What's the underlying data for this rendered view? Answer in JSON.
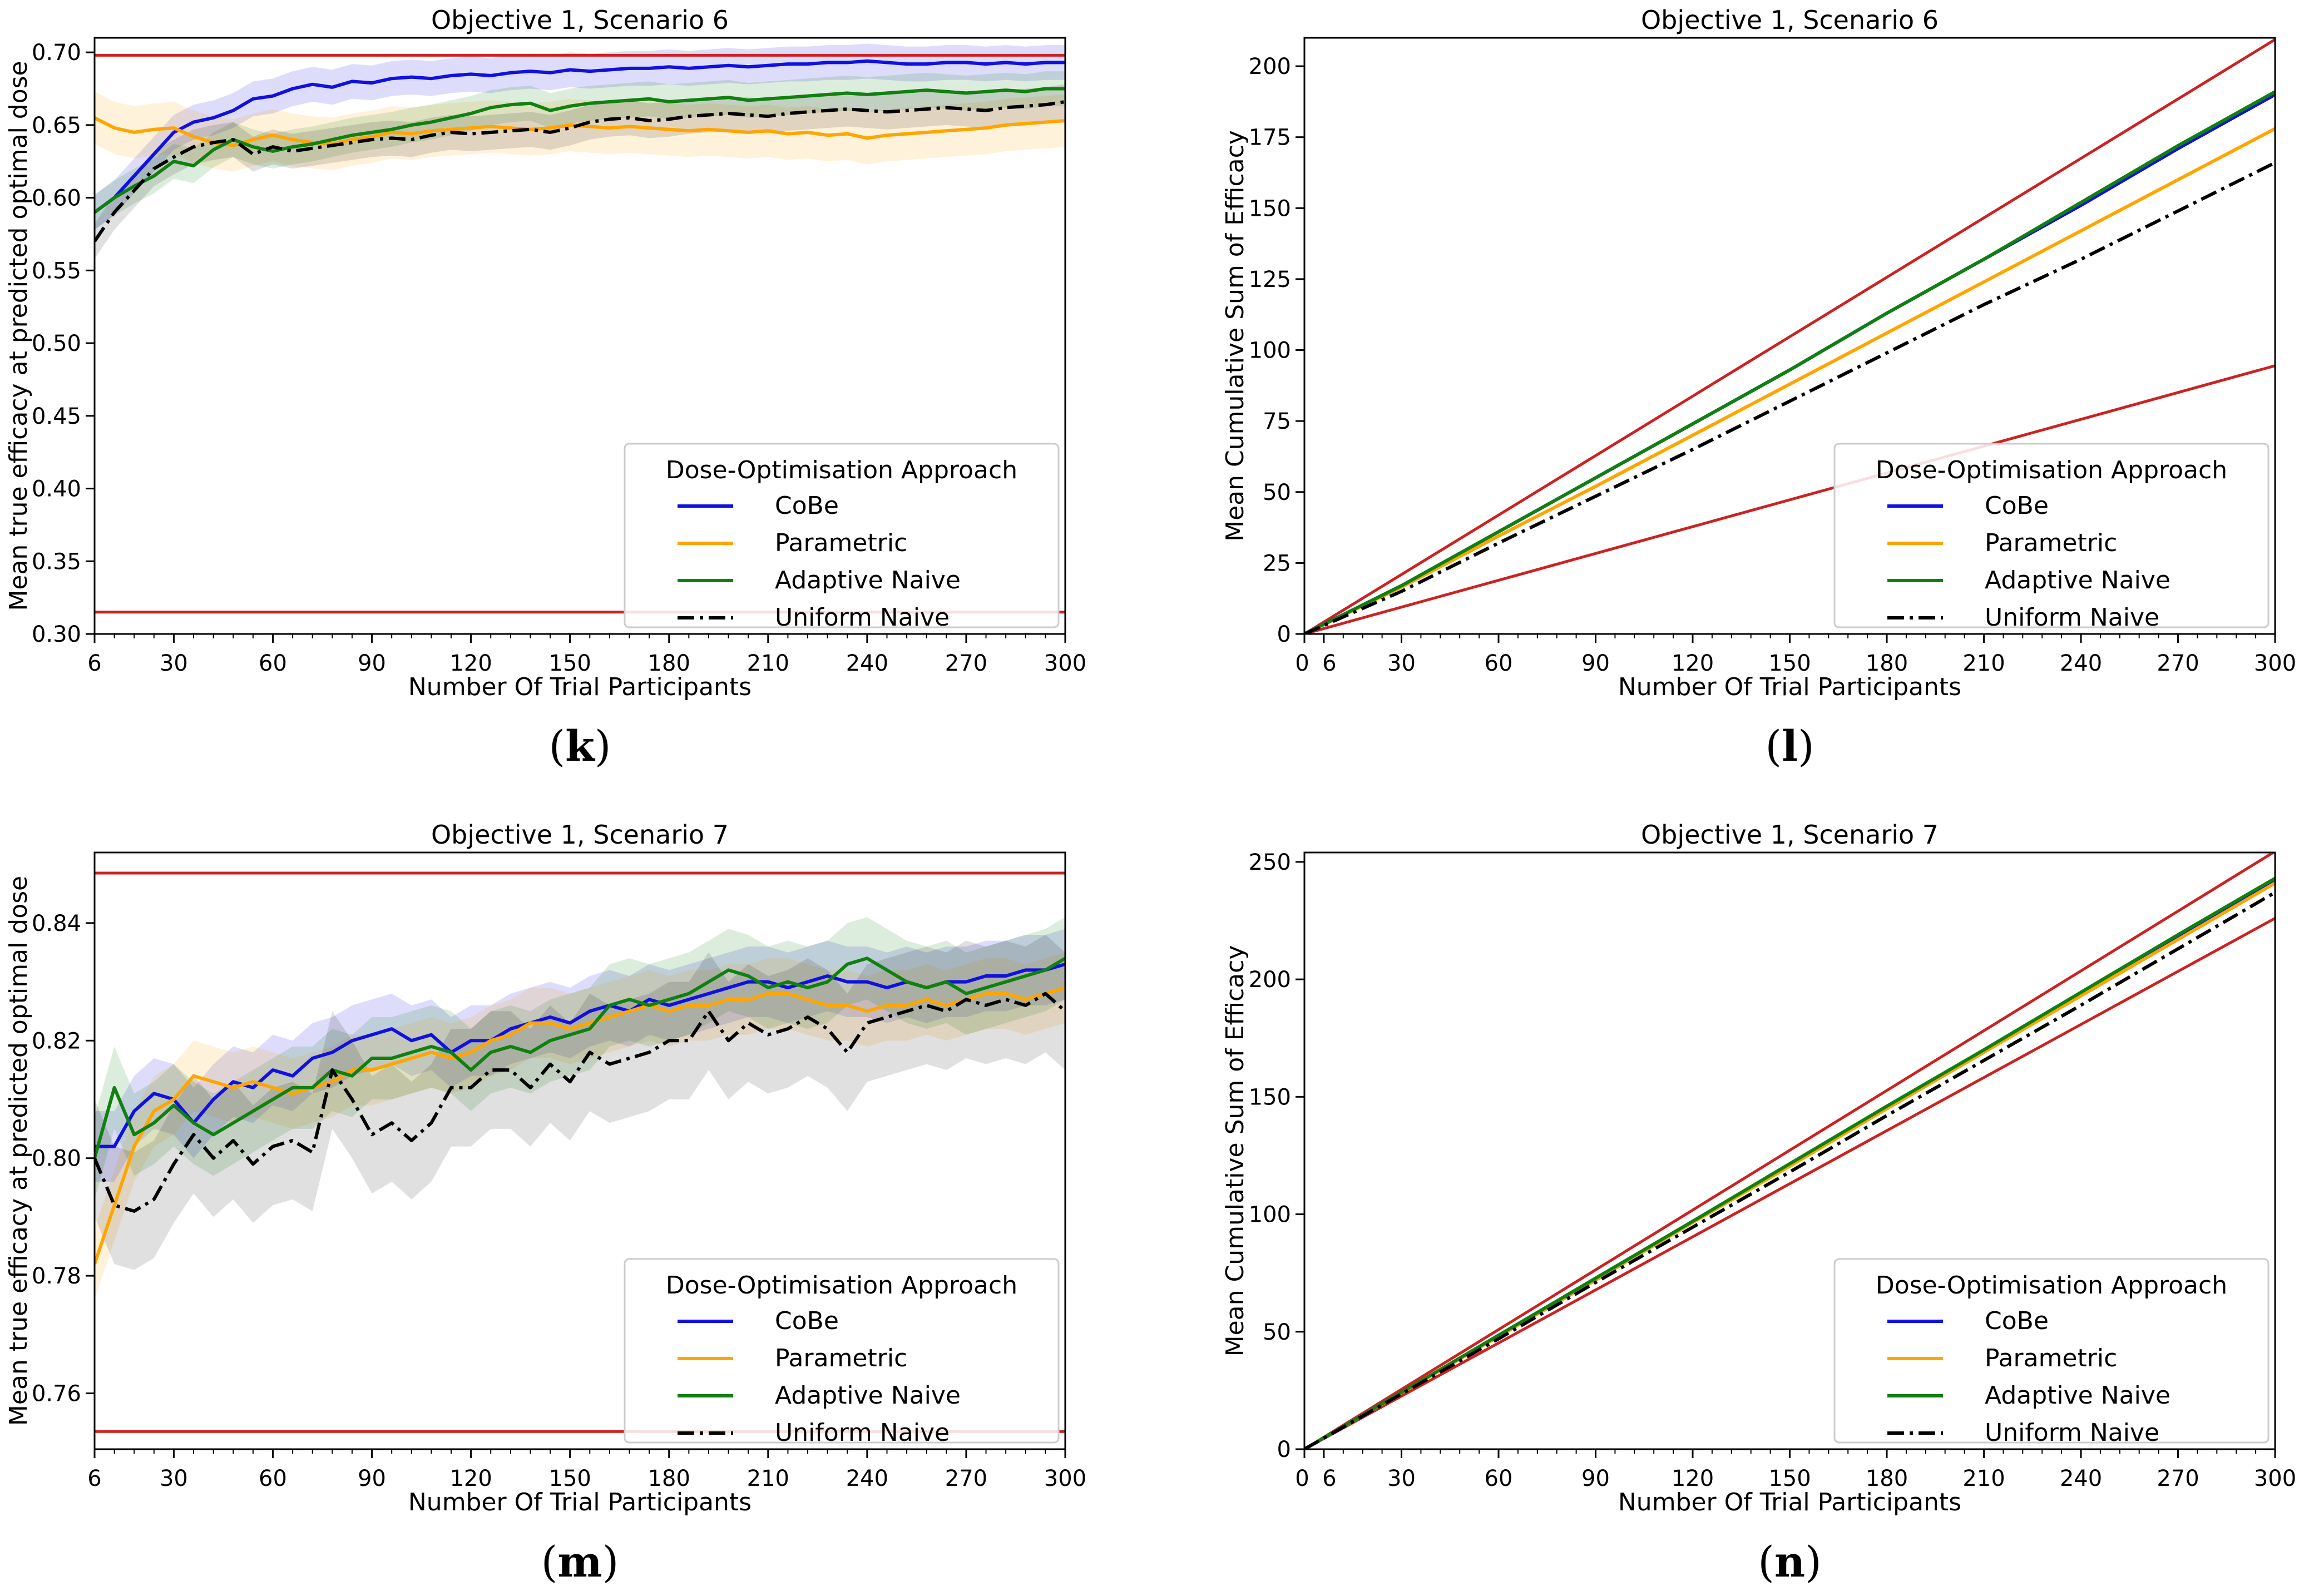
{
  "chart_data": [
    {
      "id": "k",
      "type": "line",
      "panel_label": {
        "open": "(",
        "letter": "k",
        "close": ")"
      },
      "title": "Objective 1, Scenario 6",
      "xlabel": "Number Of Trial Participants",
      "ylabel": "Mean true efficacy at predicted optimal dose",
      "xlim": [
        6,
        300
      ],
      "ylim": [
        0.3,
        0.71
      ],
      "xticks": [
        6,
        30,
        60,
        90,
        120,
        150,
        180,
        210,
        240,
        270,
        300
      ],
      "yticks": [
        0.3,
        0.35,
        0.4,
        0.45,
        0.5,
        0.55,
        0.6,
        0.65,
        0.7
      ],
      "ytick_labels": [
        "0.30",
        "0.35",
        "0.40",
        "0.45",
        "0.50",
        "0.55",
        "0.60",
        "0.65",
        "0.70"
      ],
      "hlines": [
        0.698,
        0.315
      ],
      "legend": {
        "title": "Dose-Optimisation Approach",
        "location": "lower-right"
      },
      "x": [
        6,
        12,
        18,
        24,
        30,
        36,
        42,
        48,
        54,
        60,
        66,
        72,
        78,
        84,
        90,
        96,
        102,
        108,
        114,
        120,
        126,
        132,
        138,
        144,
        150,
        156,
        162,
        168,
        174,
        180,
        186,
        192,
        198,
        204,
        210,
        216,
        222,
        228,
        234,
        240,
        246,
        252,
        258,
        264,
        270,
        276,
        282,
        288,
        294,
        300
      ],
      "series": [
        {
          "name": "CoBe",
          "color": "#1010e0",
          "dash": "solid",
          "band": 0.012,
          "values": [
            0.59,
            0.6,
            0.615,
            0.63,
            0.645,
            0.652,
            0.655,
            0.66,
            0.668,
            0.67,
            0.675,
            0.678,
            0.676,
            0.68,
            0.679,
            0.682,
            0.683,
            0.682,
            0.684,
            0.685,
            0.684,
            0.686,
            0.687,
            0.686,
            0.688,
            0.687,
            0.688,
            0.689,
            0.689,
            0.69,
            0.689,
            0.69,
            0.691,
            0.69,
            0.691,
            0.692,
            0.692,
            0.693,
            0.693,
            0.694,
            0.693,
            0.692,
            0.692,
            0.693,
            0.693,
            0.692,
            0.693,
            0.692,
            0.693,
            0.693
          ]
        },
        {
          "name": "Parametric",
          "color": "#ffa500",
          "dash": "solid",
          "band": 0.018,
          "values": [
            0.655,
            0.648,
            0.645,
            0.647,
            0.648,
            0.642,
            0.638,
            0.636,
            0.64,
            0.643,
            0.64,
            0.638,
            0.637,
            0.64,
            0.642,
            0.645,
            0.644,
            0.646,
            0.647,
            0.648,
            0.649,
            0.648,
            0.647,
            0.648,
            0.65,
            0.649,
            0.648,
            0.649,
            0.648,
            0.647,
            0.646,
            0.647,
            0.646,
            0.645,
            0.646,
            0.644,
            0.645,
            0.643,
            0.644,
            0.641,
            0.643,
            0.644,
            0.645,
            0.646,
            0.647,
            0.648,
            0.65,
            0.651,
            0.652,
            0.653
          ]
        },
        {
          "name": "Adaptive Naive",
          "color": "#108010",
          "dash": "solid",
          "band": 0.012,
          "values": [
            0.59,
            0.6,
            0.608,
            0.615,
            0.625,
            0.622,
            0.633,
            0.64,
            0.635,
            0.632,
            0.635,
            0.637,
            0.64,
            0.643,
            0.645,
            0.647,
            0.65,
            0.652,
            0.655,
            0.658,
            0.662,
            0.664,
            0.665,
            0.66,
            0.663,
            0.665,
            0.666,
            0.667,
            0.668,
            0.666,
            0.667,
            0.668,
            0.669,
            0.667,
            0.668,
            0.669,
            0.67,
            0.671,
            0.672,
            0.671,
            0.672,
            0.673,
            0.674,
            0.673,
            0.672,
            0.673,
            0.674,
            0.673,
            0.675,
            0.675
          ]
        },
        {
          "name": "Uniform Naive",
          "color": "#000000",
          "dash": "dashdot",
          "band": 0.012,
          "values": [
            0.57,
            0.59,
            0.605,
            0.62,
            0.628,
            0.635,
            0.638,
            0.64,
            0.63,
            0.635,
            0.632,
            0.634,
            0.636,
            0.638,
            0.64,
            0.641,
            0.64,
            0.643,
            0.645,
            0.644,
            0.645,
            0.646,
            0.647,
            0.645,
            0.648,
            0.652,
            0.654,
            0.655,
            0.653,
            0.654,
            0.656,
            0.657,
            0.658,
            0.657,
            0.656,
            0.658,
            0.659,
            0.66,
            0.661,
            0.66,
            0.659,
            0.66,
            0.661,
            0.662,
            0.661,
            0.66,
            0.662,
            0.663,
            0.664,
            0.666
          ]
        }
      ]
    },
    {
      "id": "l",
      "type": "line",
      "panel_label": {
        "open": "(",
        "letter": "l",
        "close": ")"
      },
      "title": "Objective 1, Scenario 6",
      "xlabel": "Number Of Trial Participants",
      "ylabel": "Mean Cumulative Sum of Efficacy",
      "xlim": [
        0,
        300
      ],
      "ylim": [
        0,
        210
      ],
      "xticks": [
        0,
        6,
        30,
        60,
        90,
        120,
        150,
        180,
        210,
        240,
        270,
        300
      ],
      "yticks": [
        0,
        25,
        50,
        75,
        100,
        125,
        150,
        175,
        200
      ],
      "ytick_labels": [
        "0",
        "25",
        "50",
        "75",
        "100",
        "125",
        "150",
        "175",
        "200"
      ],
      "ref_lines": [
        {
          "x": [
            0,
            300
          ],
          "y": [
            0,
            209.4
          ]
        },
        {
          "x": [
            0,
            300
          ],
          "y": [
            0,
            94.5
          ]
        }
      ],
      "legend": {
        "title": "Dose-Optimisation Approach",
        "location": "lower-right"
      },
      "x": [
        0,
        30,
        60,
        90,
        120,
        150,
        180,
        210,
        240,
        270,
        300
      ],
      "series": [
        {
          "name": "CoBe",
          "color": "#1010e0",
          "dash": "solid",
          "values": [
            0,
            17,
            36,
            55,
            74,
            93,
            113,
            132,
            151,
            171,
            190
          ]
        },
        {
          "name": "Parametric",
          "color": "#ffa500",
          "dash": "solid",
          "values": [
            0,
            16.5,
            34.5,
            52,
            70,
            88,
            106,
            124,
            142,
            160,
            178
          ]
        },
        {
          "name": "Adaptive Naive",
          "color": "#108010",
          "dash": "solid",
          "values": [
            0,
            17,
            36,
            55,
            74,
            93,
            113,
            132,
            152,
            172,
            191
          ]
        },
        {
          "name": "Uniform Naive",
          "color": "#000000",
          "dash": "dashdot",
          "values": [
            0,
            15,
            32,
            48.5,
            65,
            82,
            99,
            116,
            132,
            149,
            166
          ]
        }
      ]
    },
    {
      "id": "m",
      "type": "line",
      "panel_label": {
        "open": "(",
        "letter": "m",
        "close": ")"
      },
      "title": "Objective 1, Scenario 7",
      "xlabel": "Number Of Trial Participants",
      "ylabel": "Mean true efficacy at predicted optimal dose",
      "xlim": [
        6,
        300
      ],
      "ylim": [
        0.7505,
        0.852
      ],
      "xticks": [
        6,
        30,
        60,
        90,
        120,
        150,
        180,
        210,
        240,
        270,
        300
      ],
      "yticks": [
        0.76,
        0.78,
        0.8,
        0.82,
        0.84
      ],
      "ytick_labels": [
        "0.76",
        "0.78",
        "0.80",
        "0.82",
        "0.84"
      ],
      "hlines": [
        0.8485,
        0.7535
      ],
      "legend": {
        "title": "Dose-Optimisation Approach",
        "location": "lower-right"
      },
      "x": [
        6,
        12,
        18,
        24,
        30,
        36,
        42,
        48,
        54,
        60,
        66,
        72,
        78,
        84,
        90,
        96,
        102,
        108,
        114,
        120,
        126,
        132,
        138,
        144,
        150,
        156,
        162,
        168,
        174,
        180,
        186,
        192,
        198,
        204,
        210,
        216,
        222,
        228,
        234,
        240,
        246,
        252,
        258,
        264,
        270,
        276,
        282,
        288,
        294,
        300
      ],
      "series": [
        {
          "name": "CoBe",
          "color": "#1010e0",
          "dash": "solid",
          "band": 0.006,
          "values": [
            0.802,
            0.802,
            0.808,
            0.811,
            0.81,
            0.806,
            0.81,
            0.813,
            0.812,
            0.815,
            0.814,
            0.817,
            0.818,
            0.82,
            0.821,
            0.822,
            0.82,
            0.821,
            0.818,
            0.82,
            0.82,
            0.822,
            0.823,
            0.824,
            0.823,
            0.825,
            0.826,
            0.825,
            0.827,
            0.826,
            0.827,
            0.828,
            0.829,
            0.83,
            0.83,
            0.829,
            0.83,
            0.831,
            0.83,
            0.83,
            0.829,
            0.83,
            0.829,
            0.83,
            0.83,
            0.831,
            0.831,
            0.832,
            0.832,
            0.833
          ]
        },
        {
          "name": "Parametric",
          "color": "#ffa500",
          "dash": "solid",
          "band": 0.006,
          "values": [
            0.782,
            0.792,
            0.802,
            0.808,
            0.81,
            0.814,
            0.813,
            0.812,
            0.813,
            0.812,
            0.811,
            0.812,
            0.813,
            0.815,
            0.815,
            0.816,
            0.817,
            0.818,
            0.817,
            0.818,
            0.82,
            0.821,
            0.823,
            0.823,
            0.822,
            0.823,
            0.824,
            0.825,
            0.826,
            0.825,
            0.826,
            0.826,
            0.827,
            0.827,
            0.828,
            0.828,
            0.827,
            0.826,
            0.826,
            0.825,
            0.826,
            0.826,
            0.827,
            0.826,
            0.827,
            0.828,
            0.828,
            0.827,
            0.828,
            0.829
          ]
        },
        {
          "name": "Adaptive Naive",
          "color": "#108010",
          "dash": "solid",
          "band": 0.007,
          "values": [
            0.8,
            0.812,
            0.804,
            0.806,
            0.809,
            0.806,
            0.804,
            0.806,
            0.808,
            0.81,
            0.812,
            0.812,
            0.815,
            0.814,
            0.817,
            0.817,
            0.818,
            0.819,
            0.818,
            0.815,
            0.818,
            0.819,
            0.818,
            0.82,
            0.821,
            0.822,
            0.826,
            0.827,
            0.826,
            0.827,
            0.828,
            0.83,
            0.832,
            0.831,
            0.829,
            0.83,
            0.829,
            0.83,
            0.833,
            0.834,
            0.832,
            0.83,
            0.829,
            0.83,
            0.828,
            0.829,
            0.83,
            0.831,
            0.832,
            0.834
          ]
        },
        {
          "name": "Uniform Naive",
          "color": "#000000",
          "dash": "dashdot",
          "band": 0.01,
          "values": [
            0.8,
            0.792,
            0.791,
            0.793,
            0.799,
            0.804,
            0.8,
            0.803,
            0.799,
            0.802,
            0.803,
            0.801,
            0.815,
            0.81,
            0.804,
            0.806,
            0.803,
            0.806,
            0.812,
            0.812,
            0.815,
            0.815,
            0.812,
            0.816,
            0.813,
            0.818,
            0.816,
            0.817,
            0.818,
            0.82,
            0.82,
            0.825,
            0.82,
            0.823,
            0.821,
            0.822,
            0.824,
            0.822,
            0.818,
            0.823,
            0.824,
            0.825,
            0.826,
            0.825,
            0.827,
            0.826,
            0.827,
            0.826,
            0.828,
            0.825
          ]
        }
      ]
    },
    {
      "id": "n",
      "type": "line",
      "panel_label": {
        "open": "(",
        "letter": "n",
        "close": ")"
      },
      "title": "Objective 1, Scenario 7",
      "xlabel": "Number Of Trial Participants",
      "ylabel": "Mean Cumulative Sum of Efficacy",
      "xlim": [
        0,
        300
      ],
      "ylim": [
        0,
        254
      ],
      "xticks": [
        0,
        6,
        30,
        60,
        90,
        120,
        150,
        180,
        210,
        240,
        270,
        300
      ],
      "yticks": [
        0,
        50,
        100,
        150,
        200,
        250
      ],
      "ytick_labels": [
        "0",
        "50",
        "100",
        "150",
        "200",
        "250"
      ],
      "ref_lines": [
        {
          "x": [
            0,
            300
          ],
          "y": [
            0,
            254.5
          ]
        },
        {
          "x": [
            0,
            300
          ],
          "y": [
            0,
            226
          ]
        }
      ],
      "legend": {
        "title": "Dose-Optimisation Approach",
        "location": "lower-right"
      },
      "x": [
        0,
        30,
        60,
        90,
        120,
        150,
        180,
        210,
        240,
        270,
        300
      ],
      "series": [
        {
          "name": "CoBe",
          "color": "#1010e0",
          "dash": "solid",
          "values": [
            0,
            24,
            48,
            72,
            97,
            121,
            145,
            169,
            194,
            218,
            242
          ]
        },
        {
          "name": "Parametric",
          "color": "#ffa500",
          "dash": "solid",
          "values": [
            0,
            24,
            48,
            72,
            96.5,
            120.5,
            145,
            169,
            193,
            217,
            241
          ]
        },
        {
          "name": "Adaptive Naive",
          "color": "#108010",
          "dash": "solid",
          "values": [
            0,
            24.2,
            48.5,
            72.8,
            97,
            121.5,
            146,
            170,
            194.5,
            219,
            243
          ]
        },
        {
          "name": "Uniform Naive",
          "color": "#000000",
          "dash": "dashdot",
          "values": [
            0,
            23.5,
            47,
            71,
            94.5,
            118,
            142,
            165.5,
            189,
            213,
            237
          ]
        }
      ]
    }
  ]
}
